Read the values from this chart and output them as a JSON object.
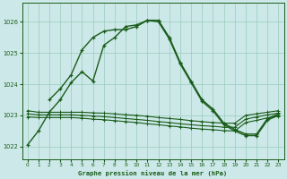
{
  "title": "Graphe pression niveau de la mer (hPa)",
  "background_color": "#cce8e8",
  "grid_color": "#99ccbb",
  "line_color": "#1a5c1a",
  "xlim": [
    -0.5,
    23.5
  ],
  "ylim": [
    1021.6,
    1026.6
  ],
  "yticks": [
    1022,
    1023,
    1024,
    1025,
    1026
  ],
  "xticks": [
    0,
    1,
    2,
    3,
    4,
    5,
    6,
    7,
    8,
    9,
    10,
    11,
    12,
    13,
    14,
    15,
    16,
    17,
    18,
    19,
    20,
    21,
    22,
    23
  ],
  "series": [
    {
      "x": [
        0,
        1,
        2,
        3,
        4,
        5,
        6,
        7,
        8,
        9,
        10,
        11,
        12,
        13,
        14,
        15,
        16,
        17,
        18,
        19,
        20,
        21,
        22,
        23
      ],
      "y": [
        1022.05,
        1022.5,
        1023.1,
        1023.5,
        1024.05,
        1024.4,
        1024.1,
        1025.25,
        1025.5,
        1025.85,
        1025.9,
        1026.05,
        1026.05,
        1025.5,
        1024.7,
        1024.1,
        1023.5,
        1023.2,
        1022.75,
        1022.55,
        1022.4,
        1022.4,
        1022.9,
        1023.05
      ],
      "marker": true,
      "linewidth": 1.0
    },
    {
      "x": [
        2,
        3,
        4,
        5,
        6,
        7,
        8,
        9,
        10,
        11,
        12,
        13,
        14,
        15,
        16,
        17,
        18,
        19,
        20,
        21,
        22,
        23
      ],
      "y": [
        1023.5,
        1023.85,
        1024.3,
        1025.1,
        1025.5,
        1025.7,
        1025.75,
        1025.75,
        1025.85,
        1026.05,
        1026.0,
        1025.45,
        1024.65,
        1024.05,
        1023.45,
        1023.15,
        1022.7,
        1022.5,
        1022.35,
        1022.35,
        1022.85,
        1023.0
      ],
      "marker": true,
      "linewidth": 1.0
    },
    {
      "x": [
        0,
        1,
        2,
        3,
        4,
        5,
        6,
        7,
        8,
        9,
        10,
        11,
        12,
        13,
        14,
        15,
        16,
        17,
        18,
        19,
        20,
        21,
        22,
        23
      ],
      "y": [
        1023.15,
        1023.1,
        1023.1,
        1023.1,
        1023.1,
        1023.1,
        1023.08,
        1023.07,
        1023.05,
        1023.02,
        1023.0,
        1022.97,
        1022.93,
        1022.9,
        1022.87,
        1022.83,
        1022.8,
        1022.77,
        1022.75,
        1022.75,
        1023.0,
        1023.05,
        1023.1,
        1023.15
      ],
      "marker": false,
      "linewidth": 0.8
    },
    {
      "x": [
        0,
        1,
        2,
        3,
        4,
        5,
        6,
        7,
        8,
        9,
        10,
        11,
        12,
        13,
        14,
        15,
        16,
        17,
        18,
        19,
        20,
        21,
        22,
        23
      ],
      "y": [
        1023.05,
        1023.02,
        1023.02,
        1023.02,
        1023.02,
        1023.0,
        1022.98,
        1022.96,
        1022.93,
        1022.9,
        1022.87,
        1022.84,
        1022.8,
        1022.77,
        1022.73,
        1022.7,
        1022.67,
        1022.65,
        1022.62,
        1022.62,
        1022.88,
        1022.95,
        1023.02,
        1023.07
      ],
      "marker": false,
      "linewidth": 0.8
    },
    {
      "x": [
        0,
        1,
        2,
        3,
        4,
        5,
        6,
        7,
        8,
        9,
        10,
        11,
        12,
        13,
        14,
        15,
        16,
        17,
        18,
        19,
        20,
        21,
        22,
        23
      ],
      "y": [
        1022.95,
        1022.93,
        1022.93,
        1022.93,
        1022.93,
        1022.91,
        1022.88,
        1022.86,
        1022.83,
        1022.8,
        1022.77,
        1022.73,
        1022.7,
        1022.66,
        1022.63,
        1022.59,
        1022.56,
        1022.54,
        1022.51,
        1022.5,
        1022.77,
        1022.84,
        1022.92,
        1022.98
      ],
      "marker": false,
      "linewidth": 0.8
    }
  ]
}
